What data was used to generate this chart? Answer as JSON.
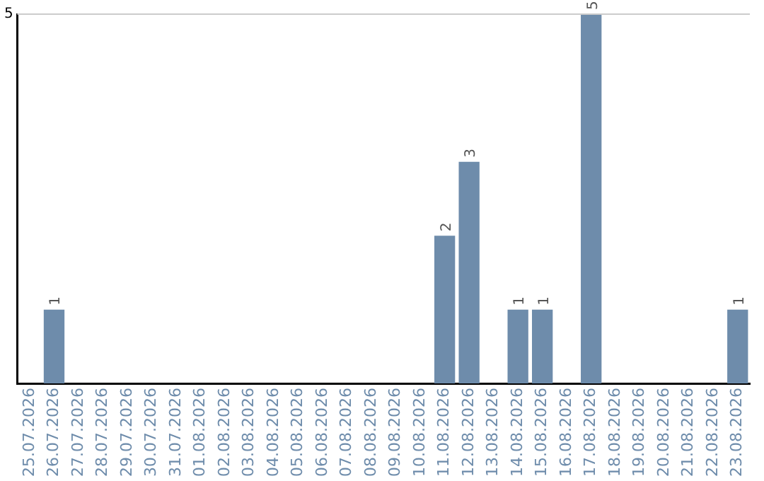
{
  "chart_data": {
    "type": "bar",
    "categories": [
      "25.07.2026",
      "26.07.2026",
      "27.07.2026",
      "28.07.2026",
      "29.07.2026",
      "30.07.2026",
      "31.07.2026",
      "01.08.2026",
      "02.08.2026",
      "03.08.2026",
      "04.08.2026",
      "05.08.2026",
      "06.08.2026",
      "07.08.2026",
      "08.08.2026",
      "09.08.2026",
      "10.08.2026",
      "11.08.2026",
      "12.08.2026",
      "13.08.2026",
      "14.08.2026",
      "15.08.2026",
      "16.08.2026",
      "17.08.2026",
      "18.08.2026",
      "19.08.2026",
      "20.08.2026",
      "21.08.2026",
      "22.08.2026",
      "23.08.2026"
    ],
    "values": [
      null,
      1,
      null,
      null,
      null,
      null,
      null,
      null,
      null,
      null,
      null,
      null,
      null,
      null,
      null,
      null,
      null,
      2,
      3,
      null,
      1,
      1,
      null,
      5,
      null,
      null,
      null,
      null,
      null,
      1
    ],
    "data_labels": true,
    "color": "#6e8cab",
    "ylim": [
      0,
      5
    ],
    "yticks": [
      5
    ],
    "ref_lines": [
      {
        "axis": "y",
        "value": 5,
        "color": "#cccccc"
      }
    ],
    "legend": false
  }
}
